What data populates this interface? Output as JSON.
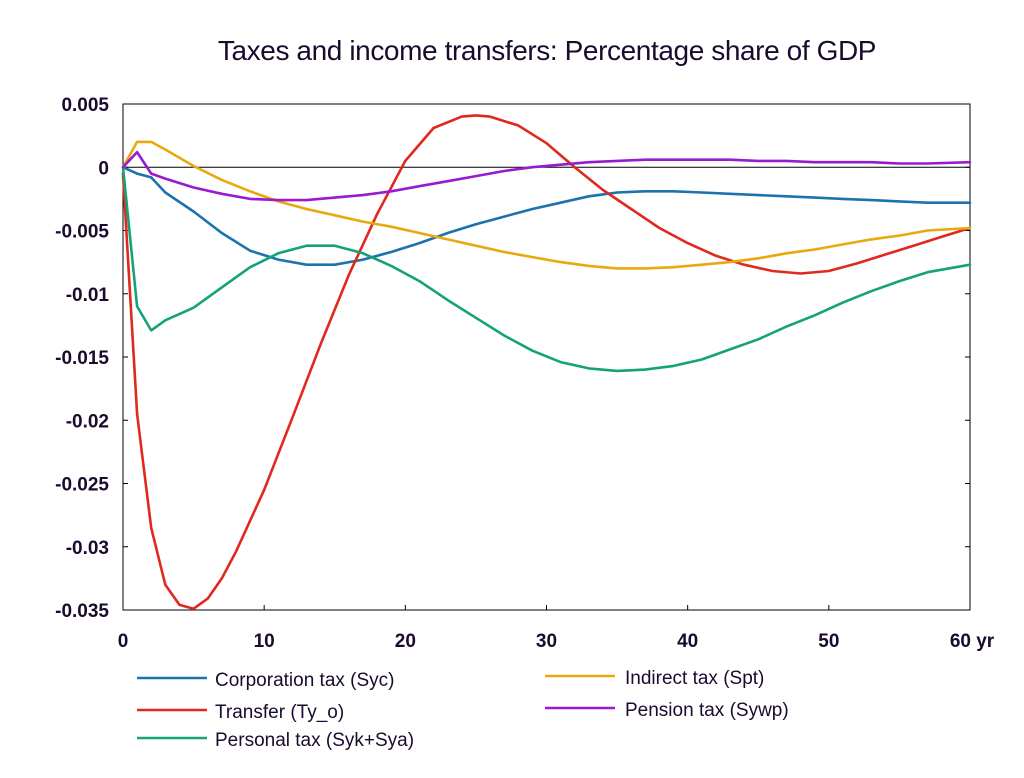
{
  "chart_data": {
    "type": "line",
    "title": "Taxes and income transfers: Percentage share of GDP",
    "xlabel": "",
    "ylabel": "",
    "xlim": [
      0,
      60
    ],
    "ylim": [
      -0.035,
      0.005
    ],
    "x_ticks": [
      0,
      10,
      20,
      30,
      40,
      50,
      60
    ],
    "x_tick_labels": [
      "0",
      "10",
      "20",
      "30",
      "40",
      "50",
      "60 yr"
    ],
    "y_ticks": [
      0.005,
      0,
      -0.005,
      -0.01,
      -0.015,
      -0.02,
      -0.025,
      -0.03,
      -0.035
    ],
    "y_tick_labels": [
      "0.005",
      "0",
      "-0.005",
      "-0.01",
      "-0.015",
      "-0.02",
      "-0.025",
      "-0.03",
      "-0.035"
    ],
    "grid": false,
    "zero_line": true,
    "legend_position": "bottom",
    "series": [
      {
        "name": "Corporation tax (Syc)",
        "color": "#1b73ad",
        "x": [
          0,
          1,
          2,
          3,
          5,
          7,
          9,
          11,
          13,
          15,
          17,
          19,
          21,
          23,
          25,
          27,
          29,
          31,
          33,
          35,
          37,
          39,
          41,
          43,
          45,
          47,
          49,
          51,
          53,
          55,
          57,
          60
        ],
        "y": [
          0,
          -0.0005,
          -0.0008,
          -0.002,
          -0.0035,
          -0.0052,
          -0.0066,
          -0.0073,
          -0.0077,
          -0.0077,
          -0.0073,
          -0.0067,
          -0.006,
          -0.0052,
          -0.0045,
          -0.0039,
          -0.0033,
          -0.0028,
          -0.0023,
          -0.002,
          -0.0019,
          -0.0019,
          -0.002,
          -0.0021,
          -0.0022,
          -0.0023,
          -0.0024,
          -0.0025,
          -0.0026,
          -0.0027,
          -0.0028,
          -0.0028
        ]
      },
      {
        "name": "Transfer (Ty_o)",
        "color": "#e0281e",
        "x": [
          0,
          1,
          2,
          3,
          4,
          5,
          6,
          7,
          8,
          10,
          12,
          14,
          16,
          18,
          20,
          22,
          24,
          25,
          26,
          28,
          30,
          32,
          34,
          36,
          38,
          40,
          42,
          44,
          46,
          48,
          50,
          52,
          54,
          56,
          58,
          60
        ],
        "y": [
          -0.0005,
          -0.0195,
          -0.0285,
          -0.033,
          -0.0346,
          -0.0349,
          -0.0341,
          -0.0325,
          -0.0304,
          -0.0255,
          -0.0198,
          -0.014,
          -0.0085,
          -0.0037,
          0.0005,
          0.0031,
          0.004,
          0.0041,
          0.004,
          0.0033,
          0.0019,
          0.0,
          -0.0018,
          -0.0033,
          -0.0048,
          -0.006,
          -0.007,
          -0.0077,
          -0.0082,
          -0.0084,
          -0.0082,
          -0.0076,
          -0.0069,
          -0.0062,
          -0.0055,
          -0.0048
        ]
      },
      {
        "name": "Personal tax (Syk+Sya)",
        "color": "#14a27a",
        "x": [
          0,
          1,
          2,
          3,
          5,
          7,
          9,
          11,
          13,
          15,
          17,
          19,
          21,
          23,
          25,
          27,
          29,
          31,
          33,
          35,
          37,
          39,
          41,
          43,
          45,
          47,
          49,
          51,
          53,
          55,
          57,
          60
        ],
        "y": [
          0,
          -0.011,
          -0.0129,
          -0.0121,
          -0.0111,
          -0.0095,
          -0.0079,
          -0.0068,
          -0.0062,
          -0.0062,
          -0.0068,
          -0.0078,
          -0.009,
          -0.0105,
          -0.0119,
          -0.0133,
          -0.0145,
          -0.0154,
          -0.0159,
          -0.0161,
          -0.016,
          -0.0157,
          -0.0152,
          -0.0144,
          -0.0136,
          -0.0126,
          -0.0117,
          -0.0107,
          -0.0098,
          -0.009,
          -0.0083,
          -0.0077
        ]
      },
      {
        "name": "Indirect tax (Spt)",
        "color": "#e9a90e",
        "x": [
          0,
          1,
          2,
          3,
          5,
          7,
          9,
          11,
          13,
          15,
          17,
          19,
          21,
          23,
          25,
          27,
          29,
          31,
          33,
          35,
          37,
          39,
          41,
          43,
          45,
          47,
          49,
          51,
          53,
          55,
          57,
          60
        ],
        "y": [
          0,
          0.002,
          0.002,
          0.0014,
          0.0001,
          -0.001,
          -0.0019,
          -0.0027,
          -0.0033,
          -0.0038,
          -0.0043,
          -0.0047,
          -0.0052,
          -0.0057,
          -0.0062,
          -0.0067,
          -0.0071,
          -0.0075,
          -0.0078,
          -0.008,
          -0.008,
          -0.0079,
          -0.0077,
          -0.0075,
          -0.0072,
          -0.0068,
          -0.0065,
          -0.0061,
          -0.0057,
          -0.0054,
          -0.005,
          -0.0048
        ]
      },
      {
        "name": "Pension tax (Sywp)",
        "color": "#9a1ad0",
        "x": [
          0,
          1,
          2,
          3,
          5,
          7,
          9,
          11,
          13,
          15,
          17,
          19,
          21,
          23,
          25,
          27,
          29,
          31,
          33,
          35,
          37,
          39,
          41,
          43,
          45,
          47,
          49,
          51,
          53,
          55,
          57,
          60
        ],
        "y": [
          0,
          0.0012,
          -0.0005,
          -0.0009,
          -0.0016,
          -0.0021,
          -0.0025,
          -0.0026,
          -0.0026,
          -0.0024,
          -0.0022,
          -0.0019,
          -0.0015,
          -0.0011,
          -0.0007,
          -0.0003,
          0.0,
          0.0002,
          0.0004,
          0.0005,
          0.0006,
          0.0006,
          0.0006,
          0.0006,
          0.0005,
          0.0005,
          0.0004,
          0.0004,
          0.0004,
          0.0003,
          0.0003,
          0.0004
        ]
      }
    ]
  }
}
